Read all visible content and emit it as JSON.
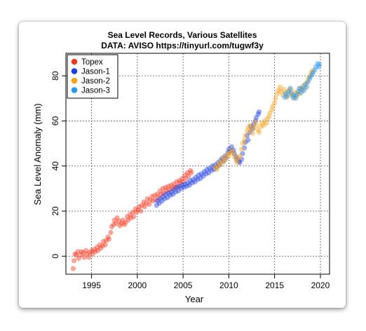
{
  "chart_data": {
    "type": "scatter",
    "title": "Sea Level Records, Various Satellites",
    "subtitle": "DATA: AVISO https://tinyurl.com/tugwf3y",
    "xlabel": "Year",
    "ylabel": "Sea Level Anomaly (mm)",
    "xlim": [
      1992.2,
      2021.0
    ],
    "ylim": [
      -8,
      90
    ],
    "xticks": [
      1995,
      2000,
      2005,
      2010,
      2015,
      2020
    ],
    "yticks": [
      0,
      20,
      40,
      60,
      80
    ],
    "grid": true,
    "legend_position": "top-left",
    "series": [
      {
        "name": "Topex",
        "color": "#f5381e",
        "points": [
          [
            1993.0,
            -5.5
          ],
          [
            1993.1,
            -2.0
          ],
          [
            1993.2,
            1.0
          ],
          [
            1993.3,
            0.5
          ],
          [
            1993.5,
            2.0
          ],
          [
            1993.6,
            -1.0
          ],
          [
            1993.8,
            0.5
          ],
          [
            1993.9,
            2.0
          ],
          [
            1994.1,
            1.5
          ],
          [
            1994.2,
            -0.5
          ],
          [
            1994.4,
            2.5
          ],
          [
            1994.5,
            1.0
          ],
          [
            1994.7,
            -0.5
          ],
          [
            1994.8,
            1.5
          ],
          [
            1995.0,
            2.5
          ],
          [
            1995.1,
            1.0
          ],
          [
            1995.3,
            3.0
          ],
          [
            1995.4,
            2.0
          ],
          [
            1995.6,
            4.0
          ],
          [
            1995.7,
            2.5
          ],
          [
            1995.9,
            5.0
          ],
          [
            1996.0,
            3.5
          ],
          [
            1996.2,
            4.5
          ],
          [
            1996.3,
            6.5
          ],
          [
            1996.5,
            5.0
          ],
          [
            1996.6,
            7.0
          ],
          [
            1996.8,
            8.5
          ],
          [
            1996.9,
            7.5
          ],
          [
            1997.1,
            10.5
          ],
          [
            1997.2,
            13.0
          ],
          [
            1997.4,
            14.0
          ],
          [
            1997.5,
            16.0
          ],
          [
            1997.7,
            14.5
          ],
          [
            1997.8,
            17.0
          ],
          [
            1998.0,
            15.5
          ],
          [
            1998.1,
            13.5
          ],
          [
            1998.3,
            14.5
          ],
          [
            1998.4,
            16.0
          ],
          [
            1998.6,
            14.0
          ],
          [
            1998.7,
            15.0
          ],
          [
            1998.9,
            17.5
          ],
          [
            1999.0,
            16.0
          ],
          [
            1999.2,
            18.5
          ],
          [
            1999.3,
            17.0
          ],
          [
            1999.5,
            19.5
          ],
          [
            1999.6,
            17.5
          ],
          [
            1999.8,
            21.0
          ],
          [
            1999.9,
            19.5
          ],
          [
            2000.1,
            20.5
          ],
          [
            2000.2,
            22.0
          ],
          [
            2000.4,
            20.0
          ],
          [
            2000.5,
            22.5
          ],
          [
            2000.7,
            24.0
          ],
          [
            2000.8,
            22.0
          ],
          [
            2001.0,
            23.5
          ],
          [
            2001.1,
            25.5
          ],
          [
            2001.3,
            23.0
          ],
          [
            2001.4,
            25.0
          ],
          [
            2001.6,
            26.5
          ],
          [
            2001.7,
            24.5
          ],
          [
            2001.9,
            27.0
          ],
          [
            2002.0,
            25.0
          ],
          [
            2002.2,
            27.5
          ],
          [
            2002.3,
            26.0
          ],
          [
            2002.5,
            29.0
          ],
          [
            2002.6,
            27.5
          ],
          [
            2002.8,
            30.0
          ],
          [
            2002.9,
            28.0
          ],
          [
            2003.1,
            30.5
          ],
          [
            2003.2,
            29.0
          ],
          [
            2003.4,
            31.0
          ],
          [
            2003.5,
            29.5
          ],
          [
            2003.7,
            31.5
          ],
          [
            2003.8,
            30.0
          ],
          [
            2004.0,
            32.0
          ],
          [
            2004.1,
            30.5
          ],
          [
            2004.3,
            33.0
          ],
          [
            2004.4,
            31.0
          ],
          [
            2004.6,
            33.5
          ],
          [
            2004.7,
            32.5
          ],
          [
            2004.9,
            34.5
          ],
          [
            2005.0,
            33.0
          ],
          [
            2005.2,
            36.0
          ],
          [
            2005.3,
            34.5
          ],
          [
            2005.5,
            37.0
          ],
          [
            2005.6,
            35.5
          ],
          [
            2005.8,
            38.0
          ],
          [
            2005.9,
            37.0
          ]
        ]
      },
      {
        "name": "Jason-1",
        "color": "#1f3fe0",
        "points": [
          [
            2002.1,
            22.5
          ],
          [
            2002.2,
            24.5
          ],
          [
            2002.4,
            23.5
          ],
          [
            2002.5,
            25.5
          ],
          [
            2002.7,
            24.5
          ],
          [
            2002.8,
            26.5
          ],
          [
            2003.0,
            25.5
          ],
          [
            2003.1,
            27.5
          ],
          [
            2003.3,
            26.0
          ],
          [
            2003.4,
            28.0
          ],
          [
            2003.6,
            27.0
          ],
          [
            2003.7,
            28.5
          ],
          [
            2003.9,
            27.5
          ],
          [
            2004.0,
            29.5
          ],
          [
            2004.2,
            28.5
          ],
          [
            2004.3,
            30.5
          ],
          [
            2004.5,
            29.0
          ],
          [
            2004.6,
            31.0
          ],
          [
            2004.8,
            30.0
          ],
          [
            2004.9,
            31.5
          ],
          [
            2005.1,
            30.5
          ],
          [
            2005.2,
            32.0
          ],
          [
            2005.4,
            31.0
          ],
          [
            2005.5,
            32.5
          ],
          [
            2005.7,
            31.5
          ],
          [
            2005.8,
            33.5
          ],
          [
            2006.0,
            32.5
          ],
          [
            2006.1,
            34.0
          ],
          [
            2006.3,
            33.0
          ],
          [
            2006.4,
            35.0
          ],
          [
            2006.6,
            34.0
          ],
          [
            2006.7,
            36.0
          ],
          [
            2006.9,
            34.5
          ],
          [
            2007.0,
            36.5
          ],
          [
            2007.2,
            35.5
          ],
          [
            2007.3,
            37.5
          ],
          [
            2007.5,
            36.5
          ],
          [
            2007.6,
            38.5
          ],
          [
            2007.8,
            37.0
          ],
          [
            2007.9,
            39.0
          ],
          [
            2008.1,
            38.0
          ],
          [
            2008.2,
            40.0
          ],
          [
            2008.4,
            38.5
          ],
          [
            2008.5,
            40.5
          ],
          [
            2008.7,
            39.5
          ],
          [
            2008.8,
            41.5
          ],
          [
            2009.0,
            40.5
          ],
          [
            2009.1,
            42.5
          ],
          [
            2009.3,
            43.5
          ],
          [
            2009.4,
            42.0
          ],
          [
            2009.6,
            44.5
          ],
          [
            2009.7,
            43.5
          ],
          [
            2009.9,
            46.0
          ],
          [
            2010.0,
            47.5
          ],
          [
            2010.2,
            46.5
          ],
          [
            2010.3,
            48.5
          ],
          [
            2010.5,
            47.0
          ],
          [
            2010.6,
            45.5
          ],
          [
            2010.8,
            44.0
          ],
          [
            2010.9,
            43.0
          ],
          [
            2011.1,
            42.0
          ],
          [
            2011.2,
            41.5
          ],
          [
            2011.4,
            43.0
          ],
          [
            2011.5,
            45.5
          ],
          [
            2011.7,
            48.0
          ],
          [
            2011.8,
            50.5
          ],
          [
            2012.0,
            53.5
          ],
          [
            2012.1,
            51.5
          ],
          [
            2012.3,
            55.0
          ],
          [
            2012.4,
            57.5
          ],
          [
            2012.6,
            56.5
          ],
          [
            2012.7,
            58.5
          ],
          [
            2012.9,
            60.0
          ],
          [
            2013.0,
            61.5
          ],
          [
            2013.2,
            63.0
          ],
          [
            2013.3,
            64.0
          ]
        ]
      },
      {
        "name": "Jason-2",
        "color": "#f5a21e",
        "points": [
          [
            2008.5,
            39.5
          ],
          [
            2008.7,
            38.5
          ],
          [
            2008.8,
            40.0
          ],
          [
            2009.0,
            41.5
          ],
          [
            2009.1,
            40.5
          ],
          [
            2009.3,
            42.0
          ],
          [
            2009.4,
            43.5
          ],
          [
            2009.6,
            42.5
          ],
          [
            2009.7,
            44.0
          ],
          [
            2009.9,
            45.5
          ],
          [
            2010.0,
            44.5
          ],
          [
            2010.2,
            46.0
          ],
          [
            2010.3,
            47.0
          ],
          [
            2010.5,
            45.5
          ],
          [
            2010.6,
            44.0
          ],
          [
            2010.8,
            42.5
          ],
          [
            2010.9,
            41.5
          ],
          [
            2011.1,
            43.5
          ],
          [
            2011.2,
            44.5
          ],
          [
            2011.4,
            47.5
          ],
          [
            2011.5,
            50.0
          ],
          [
            2011.7,
            51.5
          ],
          [
            2011.8,
            53.5
          ],
          [
            2012.0,
            55.5
          ],
          [
            2012.1,
            57.0
          ],
          [
            2012.3,
            58.0
          ],
          [
            2012.4,
            56.0
          ],
          [
            2012.6,
            54.5
          ],
          [
            2012.7,
            57.0
          ],
          [
            2012.9,
            59.5
          ],
          [
            2013.0,
            58.0
          ],
          [
            2013.2,
            56.0
          ],
          [
            2013.3,
            55.0
          ],
          [
            2013.5,
            57.5
          ],
          [
            2013.6,
            59.0
          ],
          [
            2013.8,
            58.0
          ],
          [
            2013.9,
            60.0
          ],
          [
            2014.1,
            59.0
          ],
          [
            2014.2,
            61.0
          ],
          [
            2014.4,
            62.0
          ],
          [
            2014.5,
            63.5
          ],
          [
            2014.7,
            65.0
          ],
          [
            2014.8,
            66.5
          ],
          [
            2015.0,
            68.0
          ],
          [
            2015.1,
            70.0
          ],
          [
            2015.3,
            72.0
          ],
          [
            2015.4,
            73.5
          ],
          [
            2015.6,
            75.0
          ],
          [
            2015.7,
            73.0
          ],
          [
            2015.9,
            71.5
          ],
          [
            2016.0,
            74.0
          ],
          [
            2016.2,
            72.5
          ],
          [
            2016.3,
            70.5
          ],
          [
            2016.5,
            73.5
          ],
          [
            2016.6,
            72.0
          ],
          [
            2016.8,
            74.0
          ],
          [
            2016.9,
            71.5
          ],
          [
            2017.1,
            70.0
          ],
          [
            2017.2,
            72.5
          ],
          [
            2017.4,
            71.0
          ],
          [
            2017.5,
            73.0
          ],
          [
            2017.7,
            72.0
          ],
          [
            2017.8,
            74.5
          ],
          [
            2018.0,
            73.5
          ],
          [
            2018.1,
            75.5
          ],
          [
            2018.3,
            74.5
          ],
          [
            2018.4,
            76.5
          ],
          [
            2018.6,
            77.5
          ],
          [
            2018.7,
            79.0
          ],
          [
            2018.9,
            80.0
          ],
          [
            2019.0,
            81.5
          ],
          [
            2019.2,
            82.5
          ]
        ]
      },
      {
        "name": "Jason-3",
        "color": "#2a9af0",
        "points": [
          [
            2016.1,
            70.5
          ],
          [
            2016.2,
            72.0
          ],
          [
            2016.4,
            71.0
          ],
          [
            2016.5,
            73.0
          ],
          [
            2016.7,
            74.5
          ],
          [
            2016.8,
            72.5
          ],
          [
            2017.0,
            70.5
          ],
          [
            2017.1,
            71.5
          ],
          [
            2017.3,
            70.0
          ],
          [
            2017.4,
            71.5
          ],
          [
            2017.6,
            73.0
          ],
          [
            2017.7,
            74.5
          ],
          [
            2017.9,
            72.5
          ],
          [
            2018.0,
            74.5
          ],
          [
            2018.2,
            73.5
          ],
          [
            2018.3,
            76.0
          ],
          [
            2018.5,
            75.0
          ],
          [
            2018.6,
            77.0
          ],
          [
            2018.8,
            78.5
          ],
          [
            2018.9,
            79.5
          ],
          [
            2019.1,
            80.5
          ],
          [
            2019.2,
            81.5
          ],
          [
            2019.4,
            82.5
          ],
          [
            2019.5,
            84.0
          ],
          [
            2019.7,
            85.5
          ],
          [
            2019.8,
            84.0
          ],
          [
            2019.9,
            85.0
          ]
        ]
      }
    ]
  }
}
